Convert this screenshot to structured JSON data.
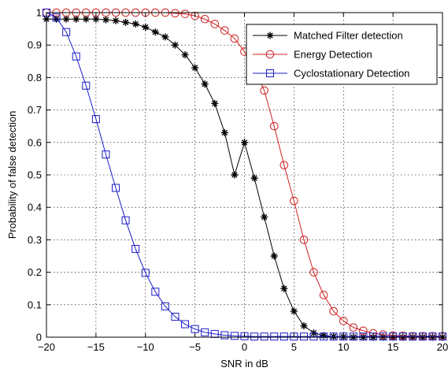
{
  "chart_data": {
    "type": "line",
    "xlabel": "SNR in dB",
    "ylabel": "Probability of false detection",
    "xlim": [
      -20,
      20
    ],
    "ylim": [
      0,
      1
    ],
    "xticks": [
      -20,
      -15,
      -10,
      -5,
      0,
      5,
      10,
      15,
      20
    ],
    "yticks": [
      0,
      0.1,
      0.2,
      0.3,
      0.4,
      0.5,
      0.6,
      0.7,
      0.8,
      0.9,
      1
    ],
    "grid": true,
    "legend_position": "top-right",
    "x": [
      -20,
      -19,
      -18,
      -17,
      -16,
      -15,
      -14,
      -13,
      -12,
      -11,
      -10,
      -9,
      -8,
      -7,
      -6,
      -5,
      -4,
      -3,
      -2,
      -1,
      0,
      1,
      2,
      3,
      4,
      5,
      6,
      7,
      8,
      9,
      10,
      11,
      12,
      13,
      14,
      15,
      16,
      17,
      18,
      19,
      20
    ],
    "series": [
      {
        "name": "Matched Filter detection",
        "color": "#000000",
        "marker": "star",
        "values": [
          0.98,
          0.98,
          0.98,
          0.98,
          0.98,
          0.98,
          0.978,
          0.975,
          0.97,
          0.965,
          0.955,
          0.94,
          0.925,
          0.9,
          0.87,
          0.83,
          0.78,
          0.72,
          0.63,
          0.5,
          0.6,
          0.49,
          0.37,
          0.25,
          0.15,
          0.08,
          0.035,
          0.013,
          0.005,
          0.002,
          0.001,
          0,
          0,
          0,
          0,
          0,
          0,
          0,
          0,
          0,
          0
        ]
      },
      {
        "name": "Energy Detection",
        "color": "#cc2020",
        "marker": "circle",
        "values": [
          1,
          1,
          1,
          1,
          1,
          1,
          1,
          1,
          1,
          1,
          1,
          1,
          1,
          0.998,
          0.996,
          0.99,
          0.98,
          0.965,
          0.945,
          0.92,
          0.88,
          0.83,
          0.76,
          0.65,
          0.53,
          0.42,
          0.3,
          0.2,
          0.13,
          0.08,
          0.05,
          0.03,
          0.02,
          0.012,
          0.008,
          0.005,
          0.004,
          0.003,
          0.003,
          0.003,
          0.003
        ]
      },
      {
        "name": "Cyclostationary Detection",
        "color": "#1c1cc8",
        "marker": "square",
        "values": [
          1,
          0.985,
          0.94,
          0.865,
          0.775,
          0.672,
          0.563,
          0.46,
          0.36,
          0.272,
          0.198,
          0.14,
          0.095,
          0.063,
          0.04,
          0.025,
          0.015,
          0.01,
          0.006,
          0.004,
          0.003,
          0.002,
          0.002,
          0.002,
          0.002,
          0.002,
          0.002,
          0.002,
          0.002,
          0.002,
          0.002,
          0.002,
          0.002,
          0.002,
          0.002,
          0.002,
          0.002,
          0.002,
          0.002,
          0.002,
          0.002
        ]
      }
    ]
  }
}
